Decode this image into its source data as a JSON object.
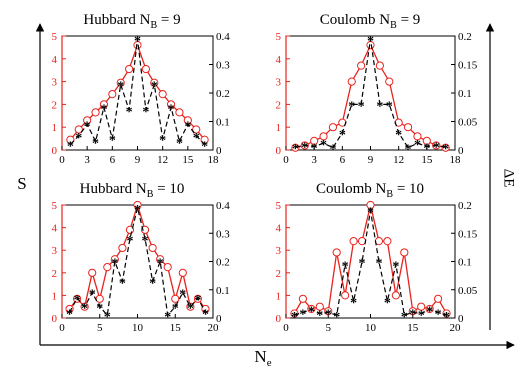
{
  "figure": {
    "ylabel_left": "S",
    "ylabel_right": "ΔE",
    "xlabel": "N",
    "xlabel_sub": "e"
  },
  "colors": {
    "S": "#e8231e",
    "dE": "#000000",
    "frame": "#000000"
  },
  "chart_data": [
    {
      "type": "line",
      "title": "Hubbard N",
      "title_sub": "B",
      "title_suffix": " = 9",
      "xlim": [
        0,
        18
      ],
      "xticks": [
        0,
        3,
        6,
        9,
        12,
        15,
        18
      ],
      "ylim_left": [
        0,
        5
      ],
      "yticks_left": [
        0,
        1,
        2,
        3,
        4,
        5
      ],
      "ylim_right": [
        0,
        0.4
      ],
      "yticks_right": [
        "0",
        "0.1",
        "0.2",
        "0.3",
        "0.4"
      ],
      "series": [
        {
          "axis": "left",
          "marker": "circle",
          "x": [
            1,
            2,
            3,
            4,
            5,
            6,
            7,
            8,
            9,
            10,
            11,
            12,
            13,
            14,
            15,
            16,
            17
          ],
          "y": [
            0.45,
            0.9,
            1.3,
            1.65,
            2.0,
            2.45,
            2.95,
            3.55,
            4.6,
            3.55,
            2.95,
            2.45,
            2.0,
            1.65,
            1.3,
            0.9,
            0.45
          ]
        },
        {
          "axis": "right",
          "marker": "star",
          "x": [
            1,
            2,
            3,
            4,
            5,
            6,
            7,
            8,
            9,
            10,
            11,
            12,
            13,
            14,
            15,
            16,
            17
          ],
          "y": [
            0.02,
            0.05,
            0.09,
            0.03,
            0.15,
            0.04,
            0.23,
            0.14,
            0.39,
            0.14,
            0.23,
            0.04,
            0.15,
            0.03,
            0.09,
            0.05,
            0.02
          ]
        }
      ]
    },
    {
      "type": "line",
      "title": "Coulomb N",
      "title_sub": "B",
      "title_suffix": " = 9",
      "xlim": [
        0,
        18
      ],
      "xticks": [
        0,
        3,
        6,
        9,
        12,
        15,
        18
      ],
      "ylim_left": [
        0,
        5
      ],
      "yticks_left": [
        0,
        1,
        2,
        3,
        4,
        5
      ],
      "ylim_right": [
        0,
        0.2
      ],
      "yticks_right": [
        "0",
        "0.05",
        "0.1",
        "0.15",
        "0.2"
      ],
      "series": [
        {
          "axis": "left",
          "marker": "circle",
          "x": [
            1,
            2,
            3,
            4,
            5,
            6,
            7,
            8,
            9,
            10,
            11,
            12,
            13,
            14,
            15,
            16,
            17
          ],
          "y": [
            0.1,
            0.2,
            0.4,
            0.6,
            1.0,
            1.2,
            3.0,
            3.7,
            4.6,
            3.7,
            3.0,
            1.2,
            1.0,
            0.6,
            0.4,
            0.2,
            0.1
          ]
        },
        {
          "axis": "right",
          "marker": "star",
          "x": [
            1,
            2,
            3,
            4,
            5,
            6,
            7,
            8,
            9,
            10,
            11,
            12,
            13,
            14,
            15,
            16,
            17
          ],
          "y": [
            0.005,
            0.008,
            0.006,
            0.012,
            0.004,
            0.03,
            0.08,
            0.08,
            0.195,
            0.08,
            0.08,
            0.03,
            0.004,
            0.012,
            0.006,
            0.008,
            0.005
          ]
        }
      ]
    },
    {
      "type": "line",
      "title": "Hubbard N",
      "title_sub": "B",
      "title_suffix": " = 10",
      "xlim": [
        0,
        20
      ],
      "xticks": [
        0,
        5,
        10,
        15,
        20
      ],
      "ylim_left": [
        0,
        5
      ],
      "yticks_left": [
        0,
        1,
        2,
        3,
        4,
        5
      ],
      "ylim_right": [
        0,
        0.4
      ],
      "yticks_right": [
        "0",
        "0.1",
        "0.2",
        "0.3",
        "0.4"
      ],
      "series": [
        {
          "axis": "left",
          "marker": "circle",
          "x": [
            1,
            2,
            3,
            4,
            5,
            6,
            7,
            8,
            9,
            10,
            11,
            12,
            13,
            14,
            15,
            16,
            17,
            18,
            19
          ],
          "y": [
            0.4,
            0.85,
            0.5,
            2.0,
            0.85,
            2.25,
            2.6,
            3.1,
            3.9,
            5.0,
            3.9,
            3.1,
            2.6,
            2.25,
            0.85,
            2.0,
            0.5,
            0.85,
            0.4
          ]
        },
        {
          "axis": "right",
          "marker": "star",
          "x": [
            1,
            2,
            3,
            4,
            5,
            6,
            7,
            8,
            9,
            10,
            11,
            12,
            13,
            14,
            15,
            16,
            17,
            18,
            19
          ],
          "y": [
            0.02,
            0.07,
            0.04,
            0.09,
            0.04,
            0.01,
            0.2,
            0.13,
            0.28,
            0.39,
            0.28,
            0.13,
            0.2,
            0.01,
            0.04,
            0.09,
            0.04,
            0.07,
            0.02
          ]
        }
      ]
    },
    {
      "type": "line",
      "title": "Coulomb N",
      "title_sub": "B",
      "title_suffix": " = 10",
      "xlim": [
        0,
        20
      ],
      "xticks": [
        0,
        5,
        10,
        15,
        20
      ],
      "ylim_left": [
        0,
        5
      ],
      "yticks_left": [
        0,
        1,
        2,
        3,
        4,
        5
      ],
      "ylim_right": [
        0,
        0.2
      ],
      "yticks_right": [
        "0",
        "0.05",
        "0.1",
        "0.15",
        "0.2"
      ],
      "series": [
        {
          "axis": "left",
          "marker": "circle",
          "x": [
            1,
            2,
            3,
            4,
            5,
            6,
            7,
            8,
            9,
            10,
            11,
            12,
            13,
            14,
            15,
            16,
            17,
            18,
            19
          ],
          "y": [
            0.2,
            0.85,
            0.4,
            0.5,
            0.3,
            2.9,
            1.0,
            3.4,
            3.4,
            5.0,
            3.4,
            3.4,
            1.0,
            2.9,
            0.3,
            0.5,
            0.4,
            0.85,
            0.2
          ]
        },
        {
          "axis": "right",
          "marker": "star",
          "x": [
            1,
            2,
            3,
            4,
            5,
            6,
            7,
            8,
            9,
            10,
            11,
            12,
            13,
            14,
            15,
            16,
            17,
            18,
            19
          ],
          "y": [
            0.005,
            0.01,
            0.015,
            0.008,
            0.01,
            0.005,
            0.095,
            0.03,
            0.1,
            0.19,
            0.1,
            0.03,
            0.095,
            0.005,
            0.01,
            0.008,
            0.015,
            0.01,
            0.005
          ]
        }
      ]
    }
  ]
}
